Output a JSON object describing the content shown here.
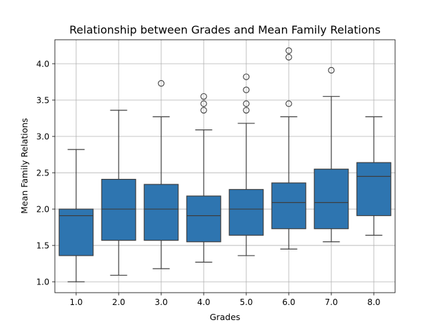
{
  "chart_data": {
    "type": "box",
    "title": "Relationship between Grades and Mean Family Relations",
    "xlabel": "Grades",
    "ylabel": "Mean Family Relations",
    "categories": [
      "1.0",
      "2.0",
      "3.0",
      "4.0",
      "5.0",
      "6.0",
      "7.0",
      "8.0"
    ],
    "ylim": [
      0.85,
      4.33
    ],
    "yticks": [
      1.0,
      1.5,
      2.0,
      2.5,
      3.0,
      3.5,
      4.0
    ],
    "ytick_labels": [
      "1.0",
      "1.5",
      "2.0",
      "2.5",
      "3.0",
      "3.5",
      "4.0"
    ],
    "grid": true,
    "color": "#2e75b0",
    "edge_color": "#3d3d3d",
    "boxes": [
      {
        "category": "1.0",
        "whisker_low": 1.0,
        "q1": 1.36,
        "median": 1.91,
        "q3": 2.0,
        "whisker_high": 2.82,
        "outliers": []
      },
      {
        "category": "2.0",
        "whisker_low": 1.09,
        "q1": 1.57,
        "median": 2.0,
        "q3": 2.41,
        "whisker_high": 3.36,
        "outliers": []
      },
      {
        "category": "3.0",
        "whisker_low": 1.18,
        "q1": 1.57,
        "median": 2.0,
        "q3": 2.34,
        "whisker_high": 3.27,
        "outliers": [
          3.73
        ]
      },
      {
        "category": "4.0",
        "whisker_low": 1.27,
        "q1": 1.55,
        "median": 1.91,
        "q3": 2.18,
        "whisker_high": 3.09,
        "outliers": [
          3.36,
          3.45,
          3.55
        ]
      },
      {
        "category": "5.0",
        "whisker_low": 1.36,
        "q1": 1.64,
        "median": 2.0,
        "q3": 2.27,
        "whisker_high": 3.18,
        "outliers": [
          3.36,
          3.45,
          3.64,
          3.82
        ]
      },
      {
        "category": "6.0",
        "whisker_low": 1.45,
        "q1": 1.73,
        "median": 2.09,
        "q3": 2.36,
        "whisker_high": 3.27,
        "outliers": [
          3.45,
          4.09,
          4.18
        ]
      },
      {
        "category": "7.0",
        "whisker_low": 1.55,
        "q1": 1.73,
        "median": 2.09,
        "q3": 2.55,
        "whisker_high": 3.55,
        "outliers": [
          3.91
        ]
      },
      {
        "category": "8.0",
        "whisker_low": 1.64,
        "q1": 1.91,
        "median": 2.45,
        "q3": 2.64,
        "whisker_high": 3.27,
        "outliers": []
      }
    ]
  }
}
